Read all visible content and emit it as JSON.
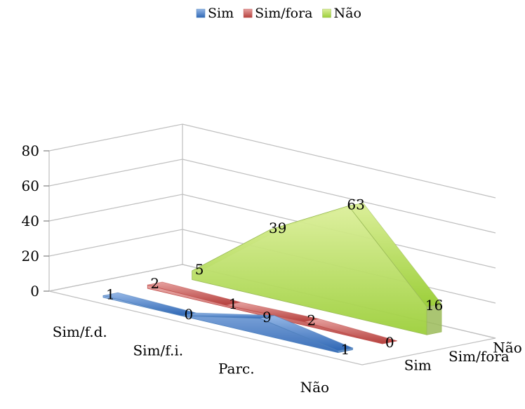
{
  "chart_data": {
    "type": "area",
    "subtype": "3d-area",
    "title": "",
    "xlabel": "",
    "ylabel": "",
    "categories": [
      "Sim/f.d.",
      "Sim/f.i.",
      "Parc.",
      "Não"
    ],
    "series": [
      {
        "name": "Sim",
        "values": [
          1,
          0,
          9,
          1
        ],
        "color": "#4f81bd"
      },
      {
        "name": "Sim/fora",
        "values": [
          2,
          1,
          2,
          0
        ],
        "color": "#c0504d"
      },
      {
        "name": "Não",
        "values": [
          5,
          39,
          63,
          16
        ],
        "color": "#9bbb59"
      }
    ],
    "depth_labels": [
      "Sim",
      "Sim/fora",
      "Não"
    ],
    "ylim": [
      0,
      80
    ],
    "yticks": [
      "0",
      "20",
      "40",
      "60",
      "80"
    ],
    "legend": "top-center",
    "grid": true
  }
}
